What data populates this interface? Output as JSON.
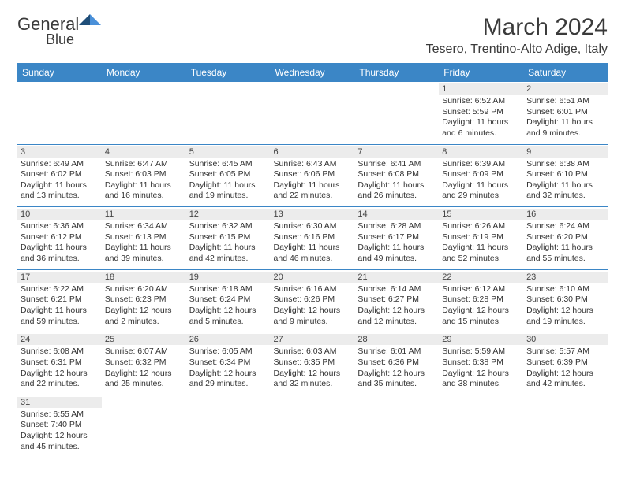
{
  "logo": {
    "general": "General",
    "blue": "Blue"
  },
  "title": "March 2024",
  "location": "Tesero, Trentino-Alto Adige, Italy",
  "colors": {
    "header_bg": "#3b86c6",
    "header_fg": "#ffffff",
    "daynum_bg": "#ececec",
    "rule": "#3b86c6",
    "logo_flag_dark": "#1f4e79",
    "logo_flag_light": "#4a90d9"
  },
  "day_names": [
    "Sunday",
    "Monday",
    "Tuesday",
    "Wednesday",
    "Thursday",
    "Friday",
    "Saturday"
  ],
  "weeks": [
    [
      null,
      null,
      null,
      null,
      null,
      {
        "n": "1",
        "sunrise": "6:52 AM",
        "sunset": "5:59 PM",
        "dlh": "11",
        "dlm": "6"
      },
      {
        "n": "2",
        "sunrise": "6:51 AM",
        "sunset": "6:01 PM",
        "dlh": "11",
        "dlm": "9"
      }
    ],
    [
      {
        "n": "3",
        "sunrise": "6:49 AM",
        "sunset": "6:02 PM",
        "dlh": "11",
        "dlm": "13"
      },
      {
        "n": "4",
        "sunrise": "6:47 AM",
        "sunset": "6:03 PM",
        "dlh": "11",
        "dlm": "16"
      },
      {
        "n": "5",
        "sunrise": "6:45 AM",
        "sunset": "6:05 PM",
        "dlh": "11",
        "dlm": "19"
      },
      {
        "n": "6",
        "sunrise": "6:43 AM",
        "sunset": "6:06 PM",
        "dlh": "11",
        "dlm": "22"
      },
      {
        "n": "7",
        "sunrise": "6:41 AM",
        "sunset": "6:08 PM",
        "dlh": "11",
        "dlm": "26"
      },
      {
        "n": "8",
        "sunrise": "6:39 AM",
        "sunset": "6:09 PM",
        "dlh": "11",
        "dlm": "29"
      },
      {
        "n": "9",
        "sunrise": "6:38 AM",
        "sunset": "6:10 PM",
        "dlh": "11",
        "dlm": "32"
      }
    ],
    [
      {
        "n": "10",
        "sunrise": "6:36 AM",
        "sunset": "6:12 PM",
        "dlh": "11",
        "dlm": "36"
      },
      {
        "n": "11",
        "sunrise": "6:34 AM",
        "sunset": "6:13 PM",
        "dlh": "11",
        "dlm": "39"
      },
      {
        "n": "12",
        "sunrise": "6:32 AM",
        "sunset": "6:15 PM",
        "dlh": "11",
        "dlm": "42"
      },
      {
        "n": "13",
        "sunrise": "6:30 AM",
        "sunset": "6:16 PM",
        "dlh": "11",
        "dlm": "46"
      },
      {
        "n": "14",
        "sunrise": "6:28 AM",
        "sunset": "6:17 PM",
        "dlh": "11",
        "dlm": "49"
      },
      {
        "n": "15",
        "sunrise": "6:26 AM",
        "sunset": "6:19 PM",
        "dlh": "11",
        "dlm": "52"
      },
      {
        "n": "16",
        "sunrise": "6:24 AM",
        "sunset": "6:20 PM",
        "dlh": "11",
        "dlm": "55"
      }
    ],
    [
      {
        "n": "17",
        "sunrise": "6:22 AM",
        "sunset": "6:21 PM",
        "dlh": "11",
        "dlm": "59"
      },
      {
        "n": "18",
        "sunrise": "6:20 AM",
        "sunset": "6:23 PM",
        "dlh": "12",
        "dlm": "2"
      },
      {
        "n": "19",
        "sunrise": "6:18 AM",
        "sunset": "6:24 PM",
        "dlh": "12",
        "dlm": "5"
      },
      {
        "n": "20",
        "sunrise": "6:16 AM",
        "sunset": "6:26 PM",
        "dlh": "12",
        "dlm": "9"
      },
      {
        "n": "21",
        "sunrise": "6:14 AM",
        "sunset": "6:27 PM",
        "dlh": "12",
        "dlm": "12"
      },
      {
        "n": "22",
        "sunrise": "6:12 AM",
        "sunset": "6:28 PM",
        "dlh": "12",
        "dlm": "15"
      },
      {
        "n": "23",
        "sunrise": "6:10 AM",
        "sunset": "6:30 PM",
        "dlh": "12",
        "dlm": "19"
      }
    ],
    [
      {
        "n": "24",
        "sunrise": "6:08 AM",
        "sunset": "6:31 PM",
        "dlh": "12",
        "dlm": "22"
      },
      {
        "n": "25",
        "sunrise": "6:07 AM",
        "sunset": "6:32 PM",
        "dlh": "12",
        "dlm": "25"
      },
      {
        "n": "26",
        "sunrise": "6:05 AM",
        "sunset": "6:34 PM",
        "dlh": "12",
        "dlm": "29"
      },
      {
        "n": "27",
        "sunrise": "6:03 AM",
        "sunset": "6:35 PM",
        "dlh": "12",
        "dlm": "32"
      },
      {
        "n": "28",
        "sunrise": "6:01 AM",
        "sunset": "6:36 PM",
        "dlh": "12",
        "dlm": "35"
      },
      {
        "n": "29",
        "sunrise": "5:59 AM",
        "sunset": "6:38 PM",
        "dlh": "12",
        "dlm": "38"
      },
      {
        "n": "30",
        "sunrise": "5:57 AM",
        "sunset": "6:39 PM",
        "dlh": "12",
        "dlm": "42"
      }
    ],
    [
      {
        "n": "31",
        "sunrise": "6:55 AM",
        "sunset": "7:40 PM",
        "dlh": "12",
        "dlm": "45"
      },
      null,
      null,
      null,
      null,
      null,
      null
    ]
  ],
  "labels": {
    "sunrise": "Sunrise: ",
    "sunset": "Sunset: ",
    "daylight1": "Daylight: ",
    "hours": " hours",
    "and": "and ",
    "minutes": " minutes."
  }
}
